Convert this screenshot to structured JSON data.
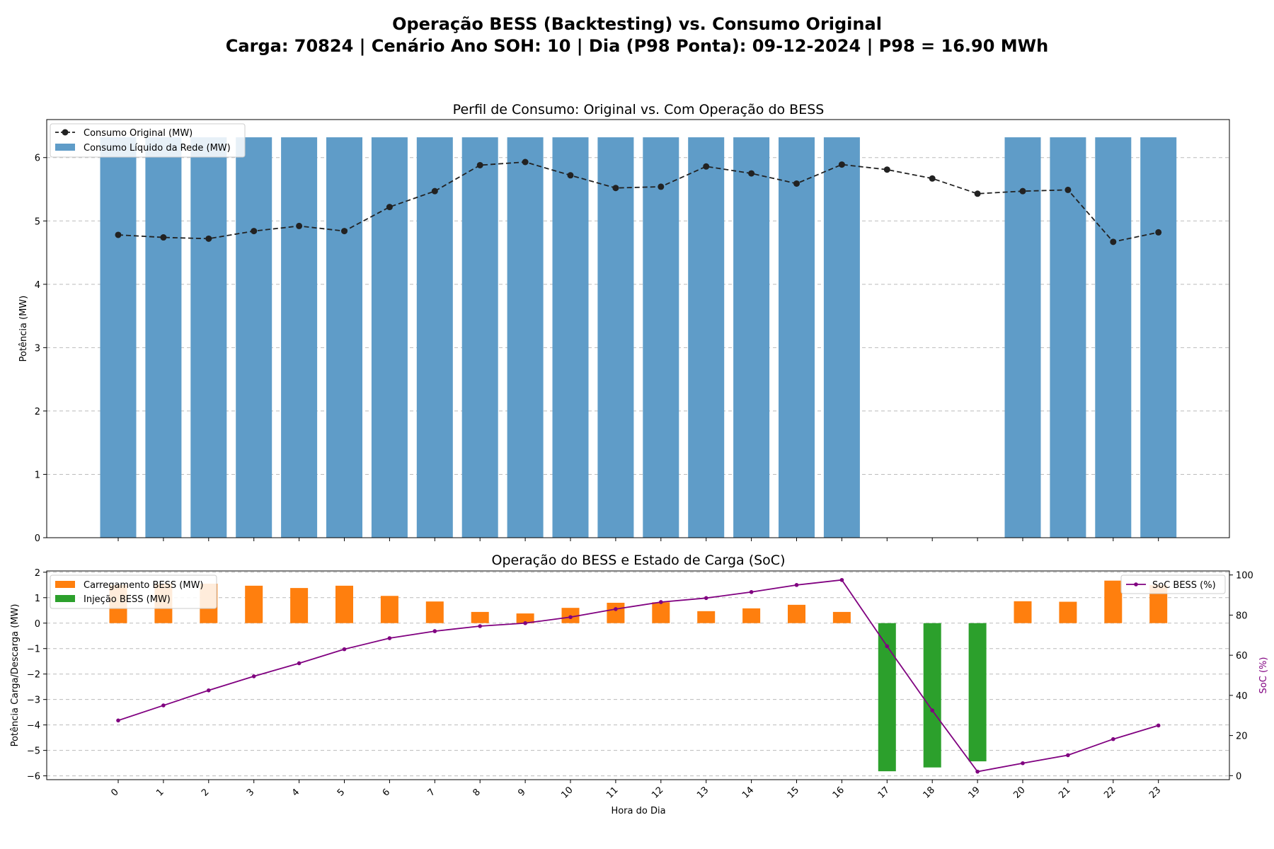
{
  "figure": {
    "title_line1": "Operação BESS (Backtesting) vs. Consumo Original",
    "title_line2": "Carga: 70824 | Cenário Ano SOH: 10 | Dia (P98 Ponta): 09-12-2024 | P98 = 16.90 MWh"
  },
  "colors": {
    "net_bar": "#5f9cc8",
    "original_line": "#222222",
    "charge_bar": "#ff7f0e",
    "discharge_bar": "#2ca02c",
    "soc_line": "#800080",
    "grid": "#bbbbbb"
  },
  "chart_data": [
    {
      "type": "bar",
      "title": "Perfil de Consumo: Original vs. Com Operação do BESS",
      "xlabel": "",
      "ylabel": "Potência (MW)",
      "categories": [
        "0",
        "1",
        "2",
        "3",
        "4",
        "5",
        "6",
        "7",
        "8",
        "9",
        "10",
        "11",
        "12",
        "13",
        "14",
        "15",
        "16",
        "17",
        "18",
        "19",
        "20",
        "21",
        "22",
        "23"
      ],
      "yticks": [
        "0",
        "1",
        "2",
        "3",
        "4",
        "5",
        "6"
      ],
      "ylim": [
        0,
        6.6
      ],
      "grid": "y",
      "legend_position": "upper left",
      "series": [
        {
          "name": "Consumo Original (MW)",
          "kind": "line",
          "style": "dashed",
          "marker": "circle",
          "values": [
            4.78,
            4.74,
            4.72,
            4.84,
            4.92,
            4.84,
            5.22,
            5.47,
            5.88,
            5.93,
            5.72,
            5.52,
            5.54,
            5.86,
            5.75,
            5.59,
            5.89,
            5.81,
            5.67,
            5.43,
            5.47,
            5.49,
            4.67,
            4.82
          ]
        },
        {
          "name": "Consumo Líquido da Rede (MW)",
          "kind": "bar",
          "values": [
            6.32,
            6.32,
            6.32,
            6.32,
            6.32,
            6.32,
            6.32,
            6.32,
            6.32,
            6.32,
            6.32,
            6.32,
            6.32,
            6.32,
            6.32,
            6.32,
            6.32,
            0,
            0,
            0,
            6.32,
            6.32,
            6.32,
            6.32
          ]
        }
      ]
    },
    {
      "type": "bar",
      "title": "Operação do BESS e Estado de Carga (SoC)",
      "xlabel": "Hora do Dia",
      "ylabel": "Potência Carga/Descarga (MW)",
      "y2label": "SoC (%)",
      "categories": [
        "0",
        "1",
        "2",
        "3",
        "4",
        "5",
        "6",
        "7",
        "8",
        "9",
        "10",
        "11",
        "12",
        "13",
        "14",
        "15",
        "16",
        "17",
        "18",
        "19",
        "20",
        "21",
        "22",
        "23"
      ],
      "yticks": [
        "−6",
        "−5",
        "−4",
        "−3",
        "−2",
        "−1",
        "0",
        "1",
        "2"
      ],
      "y2ticks": [
        "0",
        "20",
        "40",
        "60",
        "80",
        "100"
      ],
      "ylim": [
        -6.15,
        2.05
      ],
      "y2lim": [
        -2,
        102
      ],
      "grid": "y",
      "legend_position": "upper left / upper right",
      "series": [
        {
          "name": "Carregamento BESS (MW)",
          "kind": "bar",
          "values": [
            1.5,
            1.55,
            1.55,
            1.47,
            1.38,
            1.47,
            1.07,
            0.85,
            0.44,
            0.38,
            0.6,
            0.8,
            0.82,
            0.47,
            0.58,
            0.72,
            0.44,
            0,
            0,
            0,
            0.86,
            0.84,
            1.67,
            1.5
          ]
        },
        {
          "name": "Injeção BESS (MW)",
          "kind": "bar",
          "values": [
            0,
            0,
            0,
            0,
            0,
            0,
            0,
            0,
            0,
            0,
            0,
            0,
            0,
            0,
            0,
            0,
            0,
            -5.82,
            -5.67,
            -5.43,
            0,
            0,
            0,
            0
          ]
        },
        {
          "name": "SoC BESS (%)",
          "kind": "line",
          "axis": "right",
          "marker": "dot",
          "values": [
            27.5,
            35,
            42.5,
            49.5,
            56,
            63,
            68.5,
            72,
            74.5,
            76,
            79,
            83,
            86.5,
            88.5,
            91.5,
            95,
            97.5,
            64.5,
            32.5,
            2,
            6.2,
            10.2,
            18.2,
            25
          ]
        }
      ]
    }
  ]
}
